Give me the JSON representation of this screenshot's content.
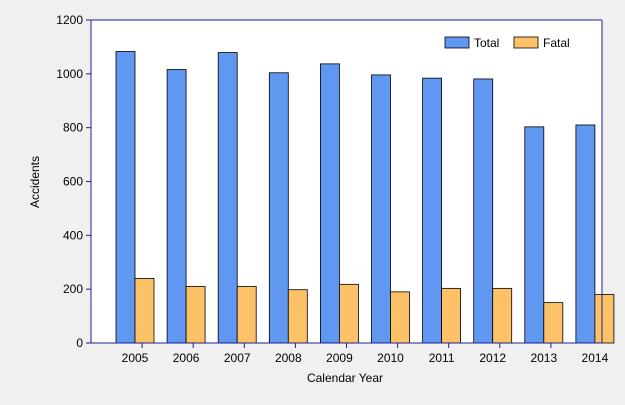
{
  "chart_data": {
    "type": "bar",
    "categories": [
      "2005",
      "2006",
      "2007",
      "2008",
      "2009",
      "2010",
      "2011",
      "2012",
      "2013",
      "2014"
    ],
    "series": [
      {
        "name": "Total",
        "color": "#6097f1",
        "values": [
          1083,
          1016,
          1079,
          1004,
          1037,
          996,
          984,
          981,
          803,
          810
        ]
      },
      {
        "name": "Fatal",
        "color": "#fdc268",
        "values": [
          240,
          210,
          210,
          198,
          218,
          190,
          203,
          203,
          150,
          180
        ]
      }
    ],
    "xlabel": "Calendar Year",
    "ylabel": "Accidents",
    "ylim": [
      0,
      1200
    ],
    "yticks": [
      0,
      200,
      400,
      600,
      800,
      1000,
      1200
    ],
    "grid": false,
    "legend_position": "top-right",
    "colors": {
      "background": "#f0f0f0",
      "plot_background": "#ffffff",
      "axis": "#1f1f8f",
      "bar_outline": "#000000"
    }
  }
}
